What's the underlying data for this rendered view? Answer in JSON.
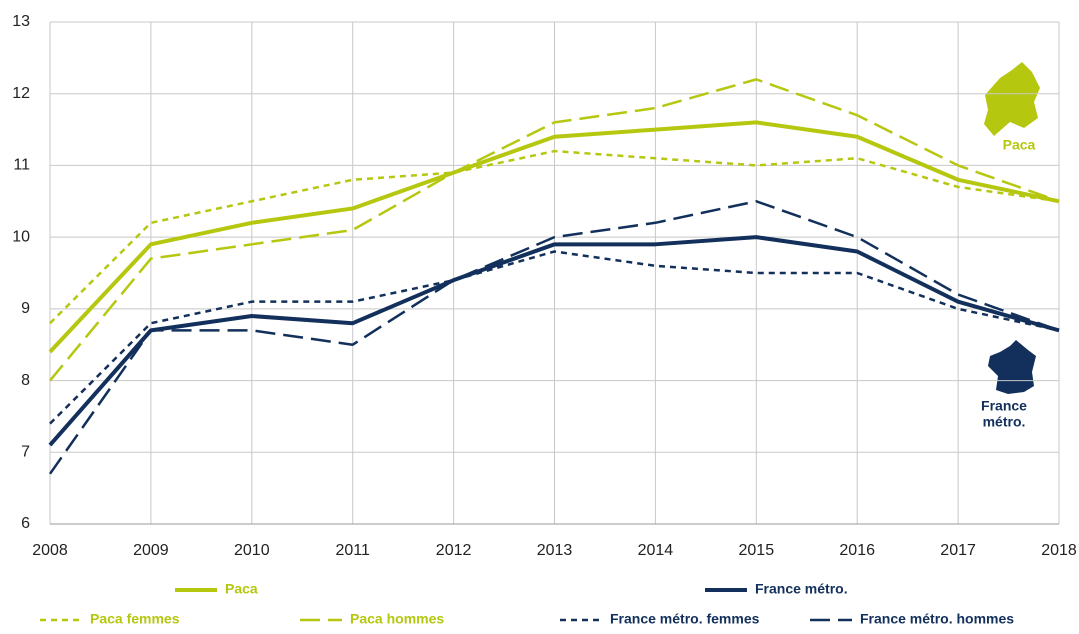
{
  "chart_data": {
    "type": "line",
    "x": [
      2008,
      2009,
      2010,
      2011,
      2012,
      2013,
      2014,
      2015,
      2016,
      2017,
      2018
    ],
    "xlim": [
      2008,
      2018
    ],
    "xticks": [
      2008,
      2009,
      2010,
      2011,
      2012,
      2013,
      2014,
      2015,
      2016,
      2017,
      2018
    ],
    "ylim": [
      6,
      13
    ],
    "yticks": [
      6,
      7,
      8,
      9,
      10,
      11,
      12,
      13
    ],
    "grid": true,
    "series": [
      {
        "name": "Paca",
        "color": "#b5c70f",
        "dash": "solid",
        "values": [
          8.4,
          9.9,
          10.2,
          10.4,
          10.9,
          11.4,
          11.5,
          11.6,
          11.4,
          10.8,
          10.5
        ]
      },
      {
        "name": "France métro.",
        "color": "#12305b",
        "dash": "solid",
        "values": [
          7.1,
          8.7,
          8.9,
          8.8,
          9.4,
          9.9,
          9.9,
          10.0,
          9.8,
          9.1,
          8.7
        ]
      },
      {
        "name": "Paca femmes",
        "color": "#b5c70f",
        "dash": "short",
        "values": [
          8.8,
          10.2,
          10.5,
          10.8,
          10.9,
          11.2,
          11.1,
          11.0,
          11.1,
          10.7,
          10.5
        ]
      },
      {
        "name": "Paca hommes",
        "color": "#b5c70f",
        "dash": "long",
        "values": [
          8.0,
          9.7,
          9.9,
          10.1,
          10.9,
          11.6,
          11.8,
          12.2,
          11.7,
          11.0,
          10.5
        ]
      },
      {
        "name": "France métro. femmes",
        "color": "#12305b",
        "dash": "short",
        "values": [
          7.4,
          8.8,
          9.1,
          9.1,
          9.4,
          9.8,
          9.6,
          9.5,
          9.5,
          9.0,
          8.7
        ]
      },
      {
        "name": "France métro. hommes",
        "color": "#12305b",
        "dash": "long",
        "values": [
          6.7,
          8.7,
          8.7,
          8.5,
          9.4,
          10.0,
          10.2,
          10.5,
          10.0,
          9.2,
          8.7
        ]
      }
    ],
    "annotations": [
      "Paca",
      "France",
      "métro."
    ]
  }
}
